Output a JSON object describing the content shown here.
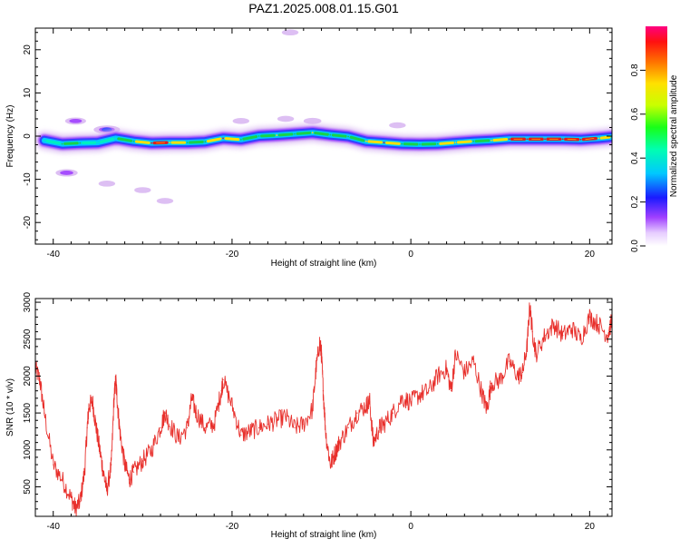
{
  "title": "PAZ1.2025.008.01.15.G01",
  "colors": {
    "snr_line": "#e8302c",
    "ridge_high": "#dd1f1f",
    "ridge_mid": "#ffe000",
    "ridge_low": "#18d24a",
    "ridge_edge": "#2f45ff",
    "halo": "#d9b8f2"
  },
  "chart_data": [
    {
      "type": "heatmap",
      "panel": "top",
      "xlabel": "Height of straight line (km)",
      "ylabel": "Frequency (Hz)",
      "xlim": [
        -42,
        22.5
      ],
      "ylim": [
        -25,
        25
      ],
      "xticks": [
        -40,
        -20,
        0,
        20
      ],
      "yticks": [
        -20,
        -10,
        0,
        10,
        20
      ],
      "grid": false,
      "ridge": {
        "x": [
          -41,
          -39,
          -37,
          -35,
          -33,
          -31,
          -29,
          -27,
          -25,
          -23,
          -21,
          -19,
          -17,
          -15,
          -13,
          -11,
          -9,
          -7,
          -5,
          -3,
          -1,
          1,
          3,
          5,
          7,
          9,
          11,
          13,
          15,
          17,
          19,
          21,
          22.5
        ],
        "freq": [
          -1.0,
          -1.8,
          -1.6,
          -1.5,
          -0.5,
          -1.2,
          -1.6,
          -1.5,
          -1.5,
          -1.3,
          -0.5,
          -0.8,
          0.0,
          0.2,
          0.5,
          0.8,
          0.3,
          -0.1,
          -1.2,
          -1.5,
          -1.8,
          -1.9,
          -1.8,
          -1.5,
          -1.2,
          -1.0,
          -0.7,
          -0.7,
          -0.7,
          -0.7,
          -0.8,
          -0.5,
          -0.2
        ],
        "amplitude": [
          0.45,
          0.5,
          0.55,
          0.4,
          0.45,
          0.55,
          0.95,
          0.75,
          0.6,
          0.55,
          0.9,
          0.55,
          0.55,
          0.7,
          0.55,
          0.65,
          0.6,
          0.55,
          0.7,
          0.9,
          0.6,
          0.55,
          0.6,
          0.75,
          0.6,
          0.7,
          0.95,
          0.95,
          0.95,
          0.95,
          0.95,
          0.8,
          0.6
        ]
      },
      "blobs": [
        {
          "x": -37.5,
          "freq": 3.5,
          "amplitude": 0.3
        },
        {
          "x": -38.5,
          "freq": -8.5,
          "amplitude": 0.35
        },
        {
          "x": -34,
          "freq": -11,
          "amplitude": 0.1
        },
        {
          "x": -30,
          "freq": -12.5,
          "amplitude": 0.1
        },
        {
          "x": -27.5,
          "freq": -15,
          "amplitude": 0.1
        },
        {
          "x": -34,
          "freq": 1.5,
          "amplitude": 0.55
        },
        {
          "x": -19,
          "freq": 3.5,
          "amplitude": 0.1
        },
        {
          "x": -14,
          "freq": 4.0,
          "amplitude": 0.1
        },
        {
          "x": -11,
          "freq": 3.5,
          "amplitude": 0.15
        },
        {
          "x": -13.5,
          "freq": 24,
          "amplitude": 0.1
        },
        {
          "x": -1.5,
          "freq": 2.5,
          "amplitude": 0.1
        }
      ],
      "colorbar": {
        "label": "Normalized spectral amplitude",
        "range": [
          0,
          1
        ],
        "ticks": [
          0.0,
          0.2,
          0.4,
          0.6,
          0.8
        ],
        "tick_labels": [
          "0.0",
          "0.2",
          "0.4",
          "0.6",
          "0.8"
        ]
      }
    },
    {
      "type": "line",
      "panel": "bottom",
      "xlabel": "Height of straight line (km)",
      "ylabel": "SNR (10 * v/v)",
      "xlim": [
        -42,
        22.5
      ],
      "ylim": [
        100,
        3050
      ],
      "xticks": [
        -40,
        -20,
        0,
        20
      ],
      "yticks": [
        500,
        1000,
        1500,
        2000,
        2500,
        3000
      ],
      "grid": false,
      "series": [
        {
          "x": [
            -42,
            -41.5,
            -41,
            -40,
            -39,
            -38,
            -37.5,
            -37,
            -36.5,
            -36.2,
            -36,
            -35.6,
            -35.2,
            -34.8,
            -34.4,
            -34,
            -33.5,
            -33.2,
            -33,
            -32.8,
            -32.5,
            -32,
            -31.5,
            -31,
            -30,
            -29,
            -28,
            -27.5,
            -27,
            -26,
            -25,
            -24.5,
            -24,
            -23,
            -22,
            -21.2,
            -21,
            -20,
            -19,
            -18,
            -17,
            -16,
            -15,
            -14,
            -13,
            -12,
            -11,
            -10.6,
            -10.2,
            -10,
            -9.8,
            -9.5,
            -9,
            -8.5,
            -8,
            -7,
            -6,
            -5,
            -4.6,
            -4.2,
            -3.5,
            -3,
            -2,
            -1,
            0,
            1,
            2,
            3,
            4,
            4.5,
            5,
            6,
            7,
            8,
            8.5,
            9,
            10,
            11,
            12,
            12.5,
            13,
            13.3,
            13.6,
            14,
            15,
            16,
            17,
            18,
            19,
            20,
            21,
            22,
            22.5
          ],
          "y": [
            2100,
            1950,
            1500,
            800,
            600,
            350,
            200,
            300,
            700,
            1300,
            1600,
            1650,
            1300,
            1000,
            700,
            450,
            800,
            1700,
            1950,
            1600,
            1200,
            800,
            600,
            700,
            850,
            1000,
            1300,
            1500,
            1350,
            1150,
            1300,
            1700,
            1500,
            1300,
            1350,
            1800,
            1950,
            1600,
            1200,
            1250,
            1300,
            1350,
            1400,
            1450,
            1300,
            1350,
            1550,
            2100,
            2450,
            2300,
            1800,
            1200,
            800,
            950,
            1100,
            1300,
            1500,
            1600,
            1650,
            1100,
            1300,
            1350,
            1500,
            1700,
            1650,
            1750,
            1800,
            2000,
            2100,
            1800,
            2300,
            2050,
            2200,
            1750,
            1550,
            1900,
            1950,
            2200,
            2000,
            2050,
            2400,
            2950,
            2600,
            2300,
            2550,
            2700,
            2550,
            2650,
            2500,
            2800,
            2700,
            2550,
            2750
          ]
        }
      ]
    }
  ]
}
